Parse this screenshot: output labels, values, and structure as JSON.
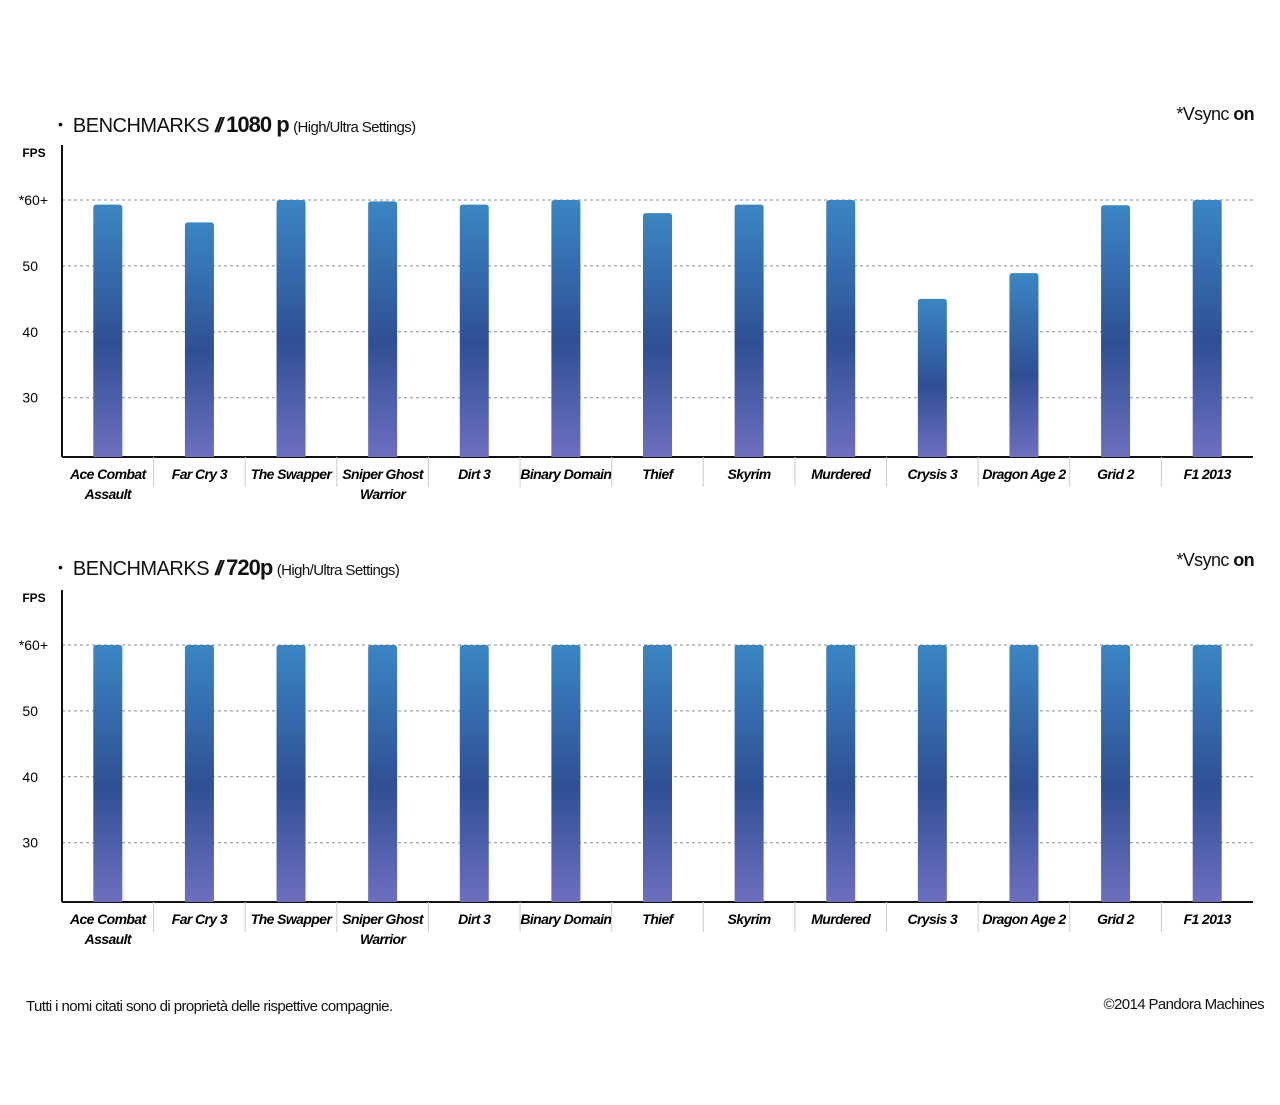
{
  "charts": [
    {
      "title": {
        "bullet": "•",
        "main": "BENCHMARKS",
        "separator": "//",
        "resolution": "1080 p",
        "settings": "(High/Ultra Settings)"
      },
      "vsync": {
        "prefix": "*Vsync ",
        "bold": "on"
      }
    },
    {
      "title": {
        "bullet": "•",
        "main": "BENCHMARKS",
        "separator": "//",
        "resolution": "720p",
        "settings": "(High/Ultra Settings)"
      },
      "vsync": {
        "prefix": "*Vsync ",
        "bold": "on"
      }
    }
  ],
  "footer": {
    "left": "Tutti i nomi citati sono di proprietà delle rispettive compagnie.",
    "right": "©2014 Pandora Machines"
  },
  "colors": {
    "bar_top": "#3a86c4",
    "bar_mid": "#2f4f94",
    "bar_bottom": "#6d6fc0",
    "grid": "#888888"
  },
  "chart_data": [
    {
      "type": "bar",
      "title": "BENCHMARKS // 1080 p (High/Ultra Settings)",
      "ylabel": "FPS",
      "note": "*Vsync on",
      "categories": [
        [
          "Ace Combat",
          "Assault"
        ],
        [
          "Far Cry 3"
        ],
        [
          "The Swapper"
        ],
        [
          "Sniper Ghost",
          "Warrior"
        ],
        [
          "Dirt 3"
        ],
        [
          "Binary Domain"
        ],
        [
          "Thief"
        ],
        [
          "Skyrim"
        ],
        [
          "Murdered"
        ],
        [
          "Crysis 3"
        ],
        [
          "Dragon Age 2"
        ],
        [
          "Grid 2"
        ],
        [
          "F1 2013"
        ]
      ],
      "values": [
        59.3,
        56.6,
        60,
        59.8,
        59.3,
        60,
        58.0,
        59.3,
        60,
        45.0,
        48.9,
        59.2,
        60
      ],
      "ylim": [
        21,
        60
      ],
      "yticks": [
        {
          "value": 30,
          "label": "30"
        },
        {
          "value": 40,
          "label": "40"
        },
        {
          "value": 50,
          "label": "50"
        },
        {
          "value": 60,
          "label": "*60+"
        }
      ],
      "grid": true
    },
    {
      "type": "bar",
      "title": "BENCHMARKS // 720p (High/Ultra Settings)",
      "ylabel": "FPS",
      "note": "*Vsync on",
      "categories": [
        [
          "Ace Combat",
          "Assault"
        ],
        [
          "Far Cry 3"
        ],
        [
          "The Swapper"
        ],
        [
          "Sniper Ghost",
          "Warrior"
        ],
        [
          "Dirt 3"
        ],
        [
          "Binary Domain"
        ],
        [
          "Thief"
        ],
        [
          "Skyrim"
        ],
        [
          "Murdered"
        ],
        [
          "Crysis 3"
        ],
        [
          "Dragon Age 2"
        ],
        [
          "Grid 2"
        ],
        [
          "F1 2013"
        ]
      ],
      "values": [
        60,
        60,
        60,
        60,
        60,
        60,
        60,
        60,
        60,
        60,
        60,
        60,
        60
      ],
      "ylim": [
        21,
        60
      ],
      "yticks": [
        {
          "value": 30,
          "label": "30"
        },
        {
          "value": 40,
          "label": "40"
        },
        {
          "value": 50,
          "label": "50"
        },
        {
          "value": 60,
          "label": "*60+"
        }
      ],
      "grid": true
    }
  ]
}
